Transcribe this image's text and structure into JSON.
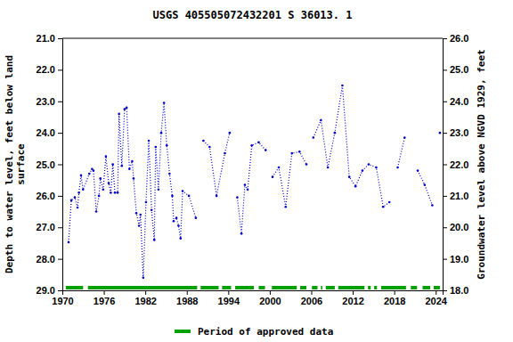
{
  "chart_data": {
    "type": "line",
    "title": "USGS 405505072432201 S 36013. 1",
    "ylabel": [
      "Depth to water level, feet below land",
      "surface"
    ],
    "y2label": "Groundwater level above NGVD 1929, feet",
    "xlim": [
      1970,
      2025
    ],
    "xticks": [
      1970,
      1976,
      1982,
      1988,
      1994,
      2000,
      2006,
      2012,
      2018,
      2024
    ],
    "ylim": [
      29,
      21
    ],
    "yticks": [
      {
        "value": 21,
        "label": "21.0"
      },
      {
        "value": 22,
        "label": "22.0"
      },
      {
        "value": 23,
        "label": "23.0"
      },
      {
        "value": 24,
        "label": "24.0"
      },
      {
        "value": 25,
        "label": "25.0"
      },
      {
        "value": 26,
        "label": "26.0"
      },
      {
        "value": 27,
        "label": "27.0"
      },
      {
        "value": 28,
        "label": "28.0"
      },
      {
        "value": 29,
        "label": "29.0"
      }
    ],
    "y2lim": [
      18,
      26
    ],
    "y2ticks": [
      {
        "value": 18,
        "label": "18.0"
      },
      {
        "value": 19,
        "label": "19.0"
      },
      {
        "value": 20,
        "label": "20.0"
      },
      {
        "value": 21,
        "label": "21.0"
      },
      {
        "value": 22,
        "label": "22.0"
      },
      {
        "value": 23,
        "label": "23.0"
      },
      {
        "value": 24,
        "label": "24.0"
      },
      {
        "value": 25,
        "label": "25.0"
      },
      {
        "value": 26,
        "label": "26.0"
      }
    ],
    "x": [
      1970.9,
      1971.3,
      1971.8,
      1972.2,
      1972.4,
      1972.7,
      1973.0,
      1973.9,
      1974.3,
      1974.5,
      1974.9,
      1975.3,
      1975.5,
      1975.9,
      1976.3,
      1976.7,
      1977.0,
      1977.3,
      1977.6,
      1978.0,
      1978.2,
      1978.6,
      1979.0,
      1979.3,
      1979.7,
      1980.1,
      1980.3,
      1980.7,
      1981.1,
      1981.3,
      1981.7,
      1982.1,
      1982.5,
      1982.9,
      1983.3,
      1983.5,
      1983.9,
      1984.3,
      1984.7,
      1985.1,
      1985.5,
      1985.9,
      1986.1,
      1986.5,
      1986.8,
      1987.1,
      1987.4,
      1988.3,
      1989.3,
      1989.9,
      1990.4,
      1991.3,
      1992.3,
      1993.5,
      1994.2,
      1994.8,
      1995.3,
      1995.9,
      1996.4,
      1996.8,
      1997.4,
      1998.4,
      1999.4,
      1999.9,
      2000.4,
      2001.3,
      2002.3,
      2003.2,
      2004.3,
      2005.3,
      2005.8,
      2006.3,
      2007.4,
      2008.4,
      2009.4,
      2010.5,
      2011.5,
      2012.4,
      2013.4,
      2014.3,
      2015.4,
      2016.4,
      2017.3,
      2017.9,
      2018.5,
      2019.5,
      2020.5,
      2021.4,
      2022.4,
      2023.5,
      2024.0,
      2024.6
    ],
    "series": [
      {
        "color": "#0000cc",
        "line_style": "dotted",
        "marker": "point",
        "values": [
          27.47,
          26.14,
          26.05,
          26.37,
          25.9,
          25.35,
          25.8,
          25.3,
          25.15,
          25.2,
          26.5,
          26.0,
          25.45,
          25.8,
          24.75,
          25.6,
          25.9,
          25.0,
          25.9,
          25.9,
          23.4,
          25.05,
          23.25,
          23.2,
          25.15,
          24.9,
          25.45,
          26.55,
          26.95,
          26.6,
          28.6,
          26.2,
          24.25,
          26.45,
          27.4,
          24.45,
          25.8,
          24.0,
          23.05,
          24.4,
          25.3,
          26.0,
          26.8,
          26.7,
          26.95,
          27.35,
          25.85,
          26.0,
          26.7,
          null,
          24.25,
          24.45,
          26.0,
          24.65,
          24.0,
          null,
          26.05,
          27.2,
          25.65,
          25.8,
          24.4,
          24.3,
          24.55,
          null,
          25.4,
          25.1,
          26.35,
          24.65,
          24.6,
          25.0,
          null,
          24.15,
          23.6,
          25.1,
          24.0,
          22.5,
          25.4,
          25.7,
          25.2,
          25.0,
          25.1,
          26.35,
          26.2,
          null,
          25.1,
          24.15,
          null,
          25.2,
          25.65,
          26.3,
          null,
          24.0
        ]
      }
    ],
    "approved_periods": {
      "name": "Period of approved data",
      "color": "#00a000",
      "ranges": [
        [
          1970.5,
          1973.0
        ],
        [
          1973.7,
          1989.5
        ],
        [
          1990.0,
          1992.6
        ],
        [
          1993.1,
          1994.4
        ],
        [
          1995.0,
          1997.7
        ],
        [
          1998.4,
          1999.3
        ],
        [
          2000.3,
          2003.9
        ],
        [
          2004.4,
          2005.3
        ],
        [
          2006.1,
          2006.9
        ],
        [
          2007.4,
          2007.6
        ],
        [
          2008.1,
          2009.4
        ],
        [
          2009.9,
          2013.7
        ],
        [
          2014.2,
          2014.6
        ],
        [
          2015.1,
          2015.5
        ],
        [
          2016.1,
          2019.7
        ],
        [
          2020.4,
          2021.3
        ],
        [
          2022.1,
          2023.2
        ],
        [
          2023.7,
          2024.6
        ]
      ]
    },
    "grid": false
  }
}
